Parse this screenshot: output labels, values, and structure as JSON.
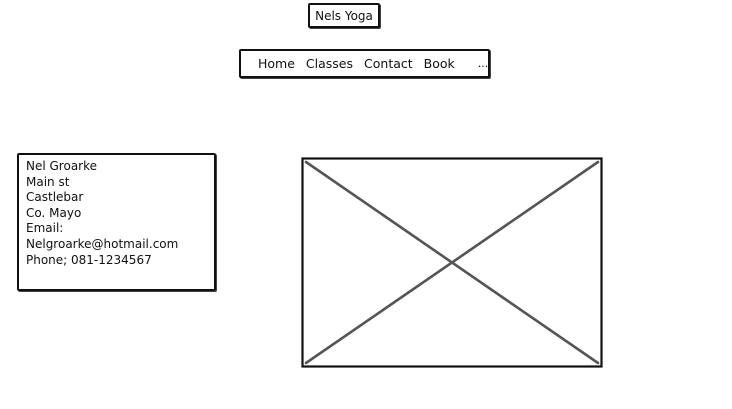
{
  "header": {
    "logo_text": "Nels Yoga"
  },
  "nav": {
    "items": [
      {
        "label": "Home"
      },
      {
        "label": "Classes"
      },
      {
        "label": "Contact"
      },
      {
        "label": "Book"
      }
    ],
    "more_label": "..."
  },
  "contact": {
    "name": "Nel Groarke",
    "street": "Main st",
    "town": "Castlebar",
    "county": "Co. Mayo",
    "email_label": "Email:",
    "email": "Nelgroarke@hotmail.com",
    "phone": "Phone; 081-1234567"
  },
  "image": {
    "icon": "image-placeholder-icon"
  }
}
